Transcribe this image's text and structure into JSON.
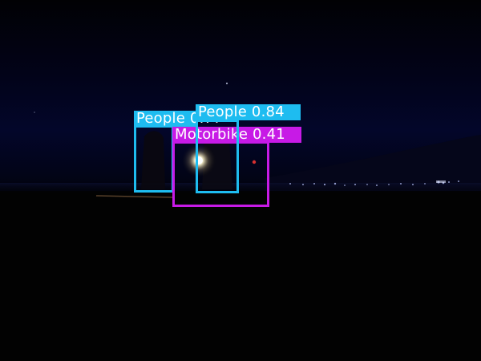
{
  "colors": {
    "people": "#1ebcf0",
    "motorbike": "#c71ae6"
  },
  "detections": [
    {
      "class_name": "People",
      "label": "People 0.7?",
      "confidence_note": "score text partially covered by another label"
    },
    {
      "class_name": "People",
      "label": "People 0.84",
      "confidence": 0.84
    },
    {
      "class_name": "Motorbike",
      "label": "Motorbike 0.41",
      "confidence": 0.41
    }
  ]
}
